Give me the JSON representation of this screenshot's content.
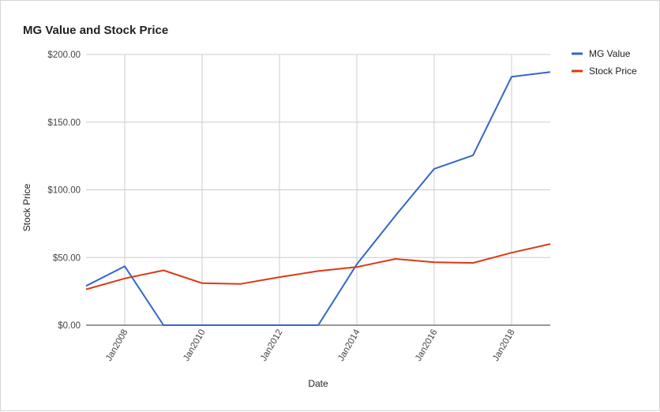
{
  "chart_data": {
    "type": "line",
    "title": "MG Value and Stock Price",
    "xlabel": "Date",
    "ylabel": "Stock Price",
    "x": [
      "2007-01-01",
      "2008-01-01",
      "2009-01-01",
      "2010-01-01",
      "2011-01-01",
      "2012-01-01",
      "2013-01-01",
      "2014-01-01",
      "2015-01-01",
      "2016-01-01",
      "2017-01-01",
      "2018-01-01",
      "2019-01-01"
    ],
    "x_ticks": [
      "Jan2008",
      "Jan2010",
      "Jan2012",
      "Jan2014",
      "Jan2016",
      "Jan2018"
    ],
    "x_tick_dates": [
      "2008-01-01",
      "2010-01-01",
      "2012-01-01",
      "2014-01-01",
      "2016-01-01",
      "2018-01-01"
    ],
    "y_ticks": [
      "$0.00",
      "$50.00",
      "$100.00",
      "$150.00",
      "$200.00"
    ],
    "ylim": [
      0,
      200
    ],
    "grid": true,
    "legend_position": "right",
    "series": [
      {
        "name": "MG Value",
        "color": "#3366cc",
        "values": [
          29,
          43.5,
          0,
          0,
          0,
          0,
          0,
          45,
          81,
          115.5,
          125.5,
          183.5,
          187
        ]
      },
      {
        "name": "Stock Price",
        "color": "#dc3912",
        "values": [
          26.5,
          34.5,
          40.5,
          31,
          30.5,
          35.5,
          40,
          43,
          49,
          46.5,
          46,
          53.5,
          60
        ]
      }
    ]
  }
}
